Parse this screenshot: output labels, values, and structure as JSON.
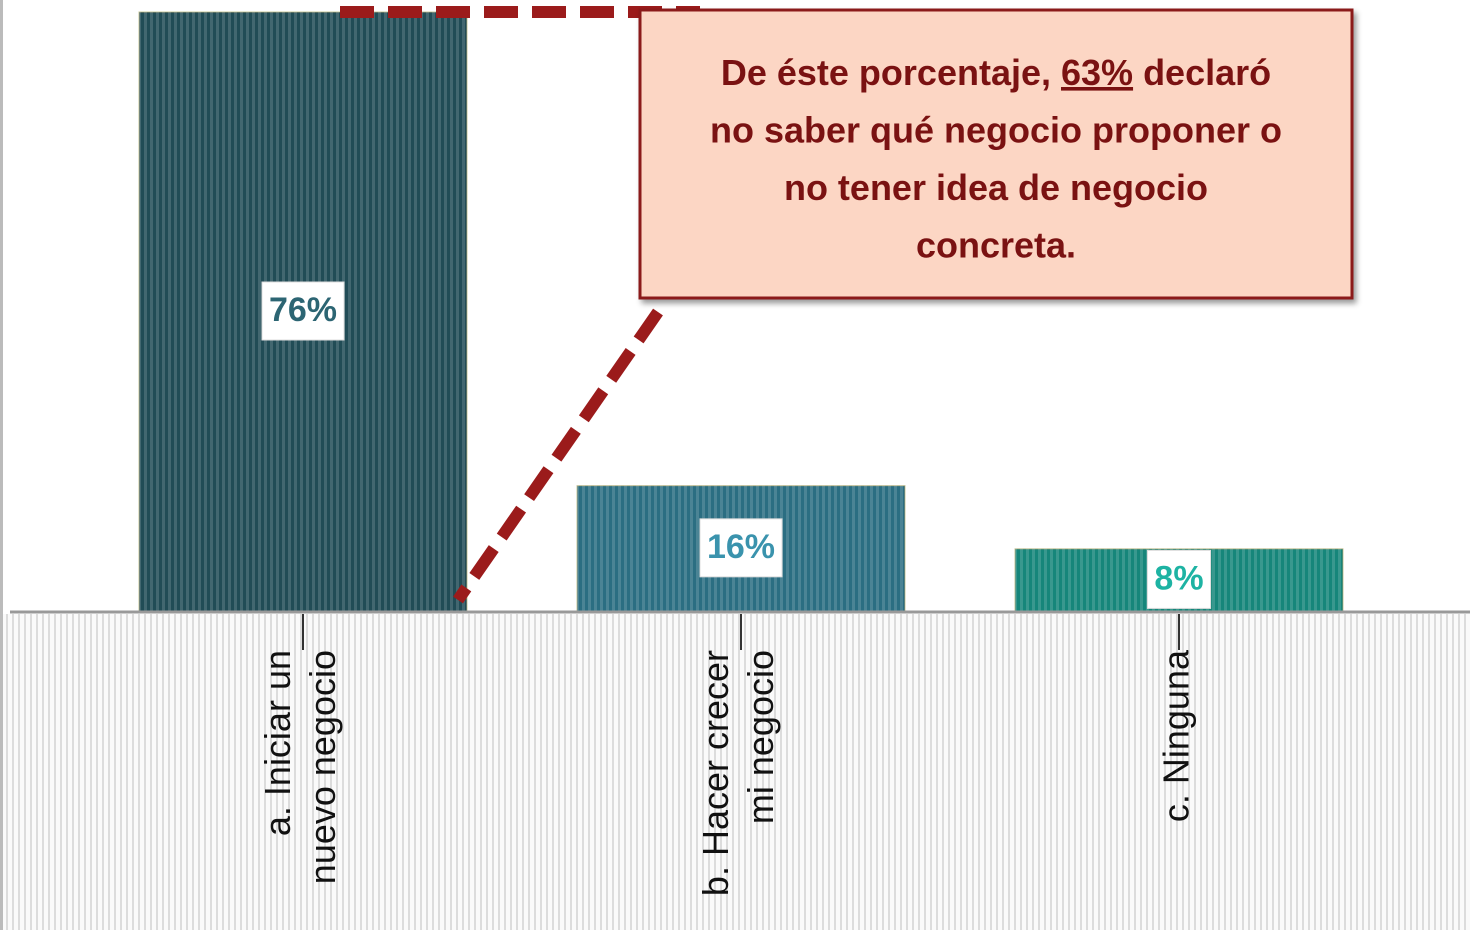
{
  "chart_data": {
    "type": "bar",
    "categories": [
      [
        "a. Iniciar un",
        "nuevo negocio"
      ],
      [
        "b. Hacer crecer",
        "mi negocio"
      ],
      [
        "c. Ninguna"
      ]
    ],
    "values": [
      76,
      16,
      8
    ],
    "value_labels": [
      "76%",
      "16%",
      "8%"
    ],
    "colors": [
      "#2c6573",
      "#3a93ad",
      "#1db3a3"
    ],
    "ylim": [
      0,
      76
    ],
    "annotation": {
      "parts": [
        "De éste porcentaje, ",
        "63%",
        " declaró"
      ],
      "lines": [
        "no saber qué negocio proponer o",
        "no tener idea de negocio",
        "concreta."
      ]
    }
  }
}
